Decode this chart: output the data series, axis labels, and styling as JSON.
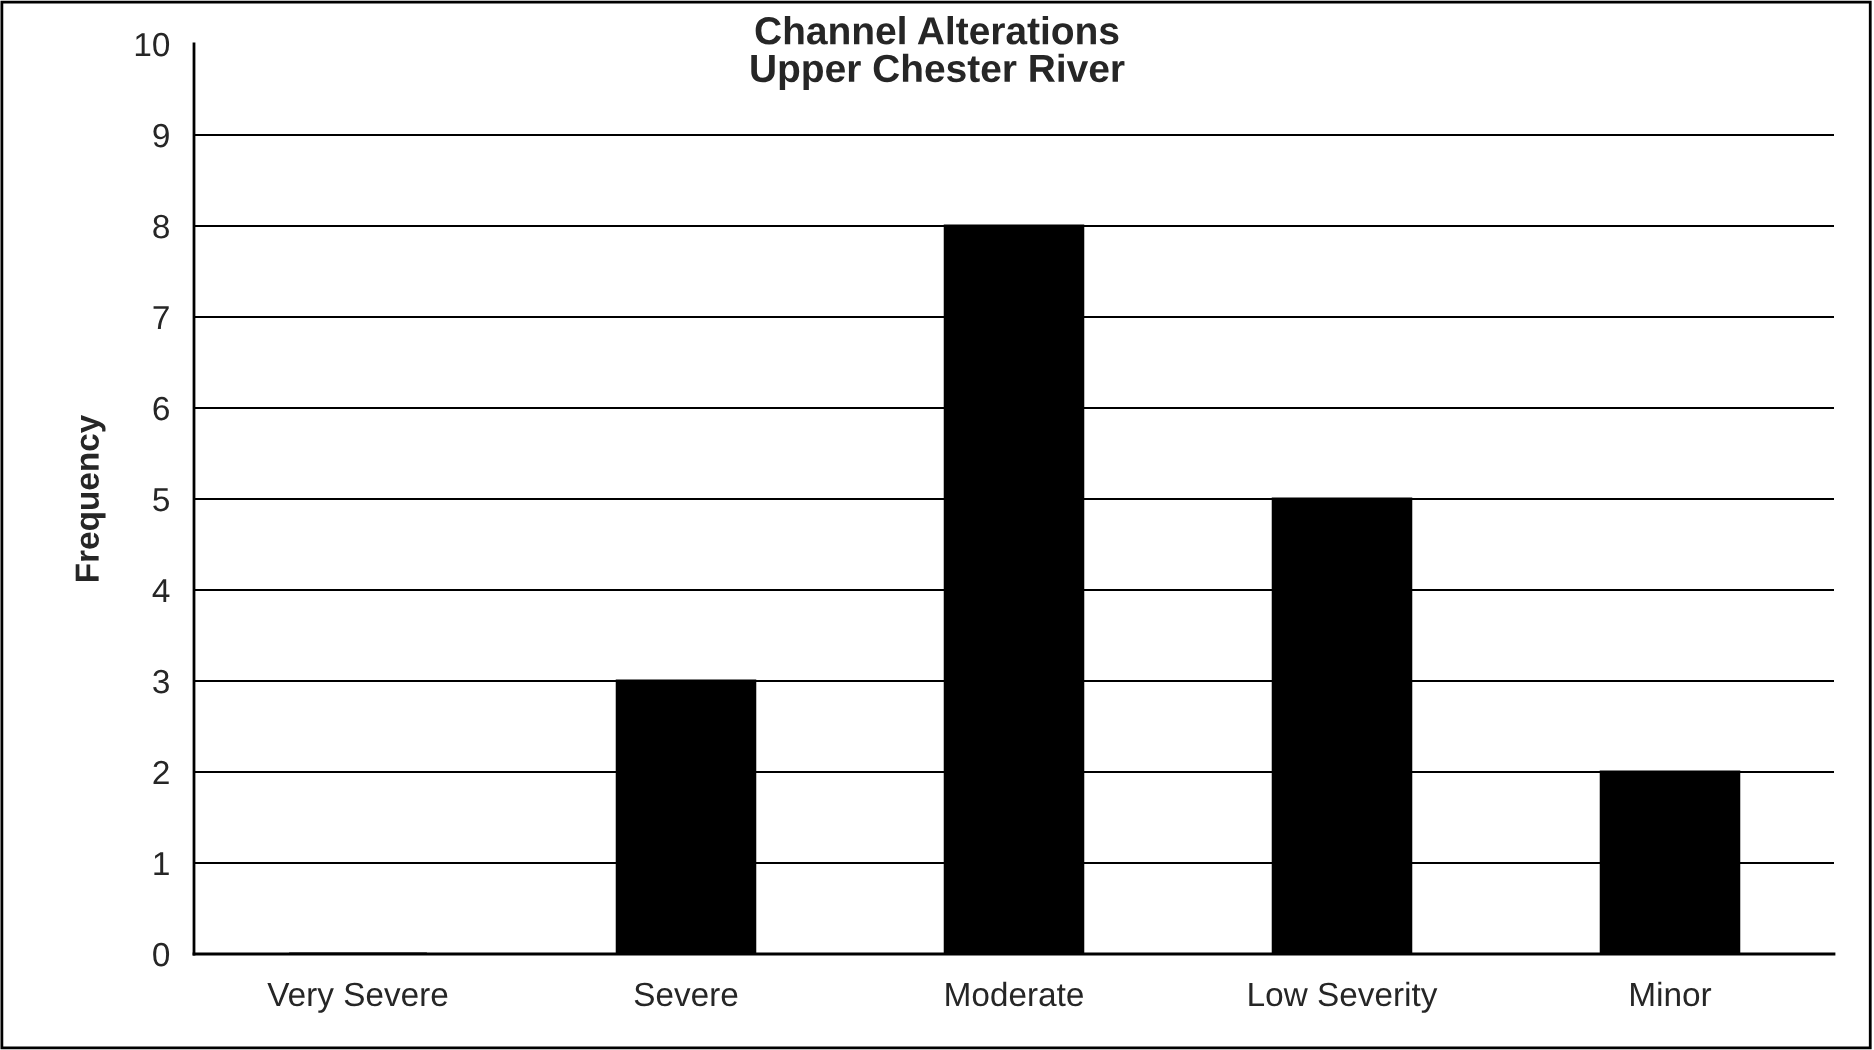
{
  "chart_data": {
    "type": "bar",
    "title": "Channel Alterations\nUpper Chester River",
    "ylabel": "Frequency",
    "categories": [
      "Very Severe",
      "Severe",
      "Moderate",
      "Low Severity",
      "Minor"
    ],
    "values": [
      0,
      3,
      8,
      5,
      2
    ],
    "color": "#000000",
    "ylim": [
      0,
      10
    ],
    "yticks": [
      0,
      1,
      2,
      3,
      4,
      5,
      6,
      7,
      8,
      9,
      10
    ],
    "grid": "y",
    "legend": false
  }
}
